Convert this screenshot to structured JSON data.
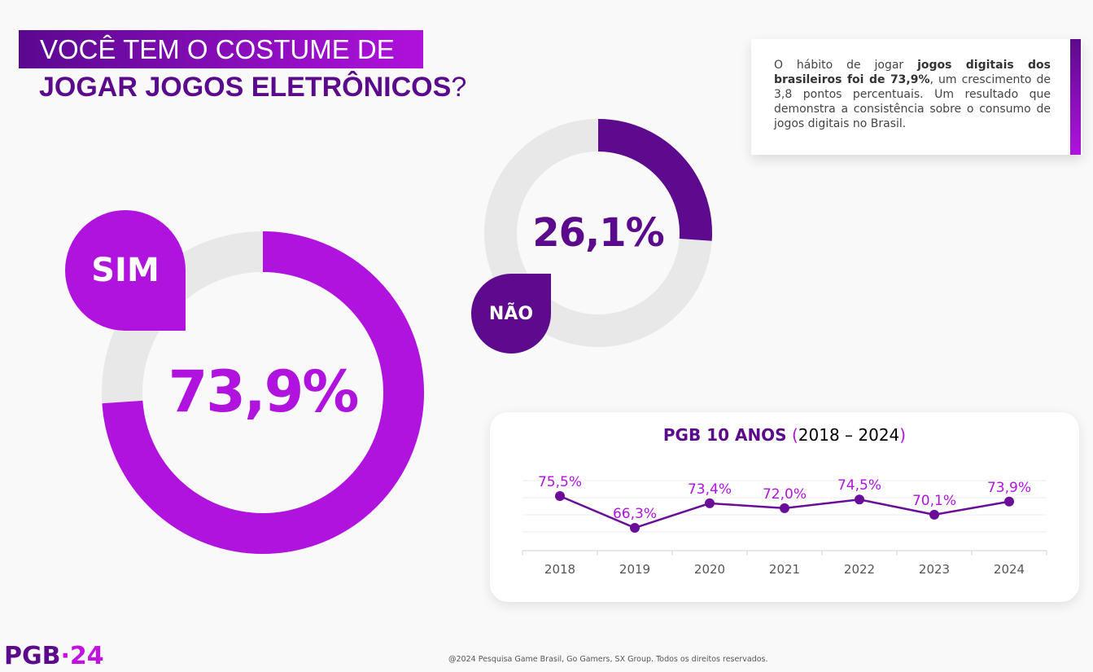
{
  "header": {
    "title_line1": "VOCÊ TEM O COSTUME DE",
    "title_line2": "JOGAR JOGOS ELETRÔNICOS",
    "title_mark": "?"
  },
  "sim": {
    "label": "SIM",
    "value_text": "73,9%",
    "value": 73.9,
    "color": "#b013de"
  },
  "nao": {
    "label": "NÃO",
    "value_text": "26,1%",
    "value": 26.1,
    "color": "#5e0a8e"
  },
  "note": {
    "pre": "O hábito de jogar ",
    "bold": "jogos digitais dos brasileiros foi de 73,9%",
    "post": ", um crescimento de 3,8 pontos percentuais. Um resultado que demonstra a consistência sobre o consumo de jogos digitais no Brasil."
  },
  "chart_data": {
    "type": "line",
    "title_part1": "PGB 10 ANOS",
    "title_part2": "(",
    "title_part3": "2018 – 2024",
    "title_part4": ")",
    "categories": [
      "2018",
      "2019",
      "2020",
      "2021",
      "2022",
      "2023",
      "2024"
    ],
    "values": [
      75.5,
      66.3,
      73.4,
      72.0,
      74.5,
      70.1,
      73.9
    ],
    "labels": [
      "75,5%",
      "66,3%",
      "73,4%",
      "72,0%",
      "74,5%",
      "70,1%",
      "73,9%"
    ],
    "line_color": "#6a0d98",
    "label_color": "#b013de",
    "grid": true
  },
  "footer": {
    "logo_a": "PGB",
    "logo_b": "·24",
    "copyright": "@2024 Pesquisa Game Brasil, Go Gamers, SX Group. Todos os direitos reservados."
  }
}
